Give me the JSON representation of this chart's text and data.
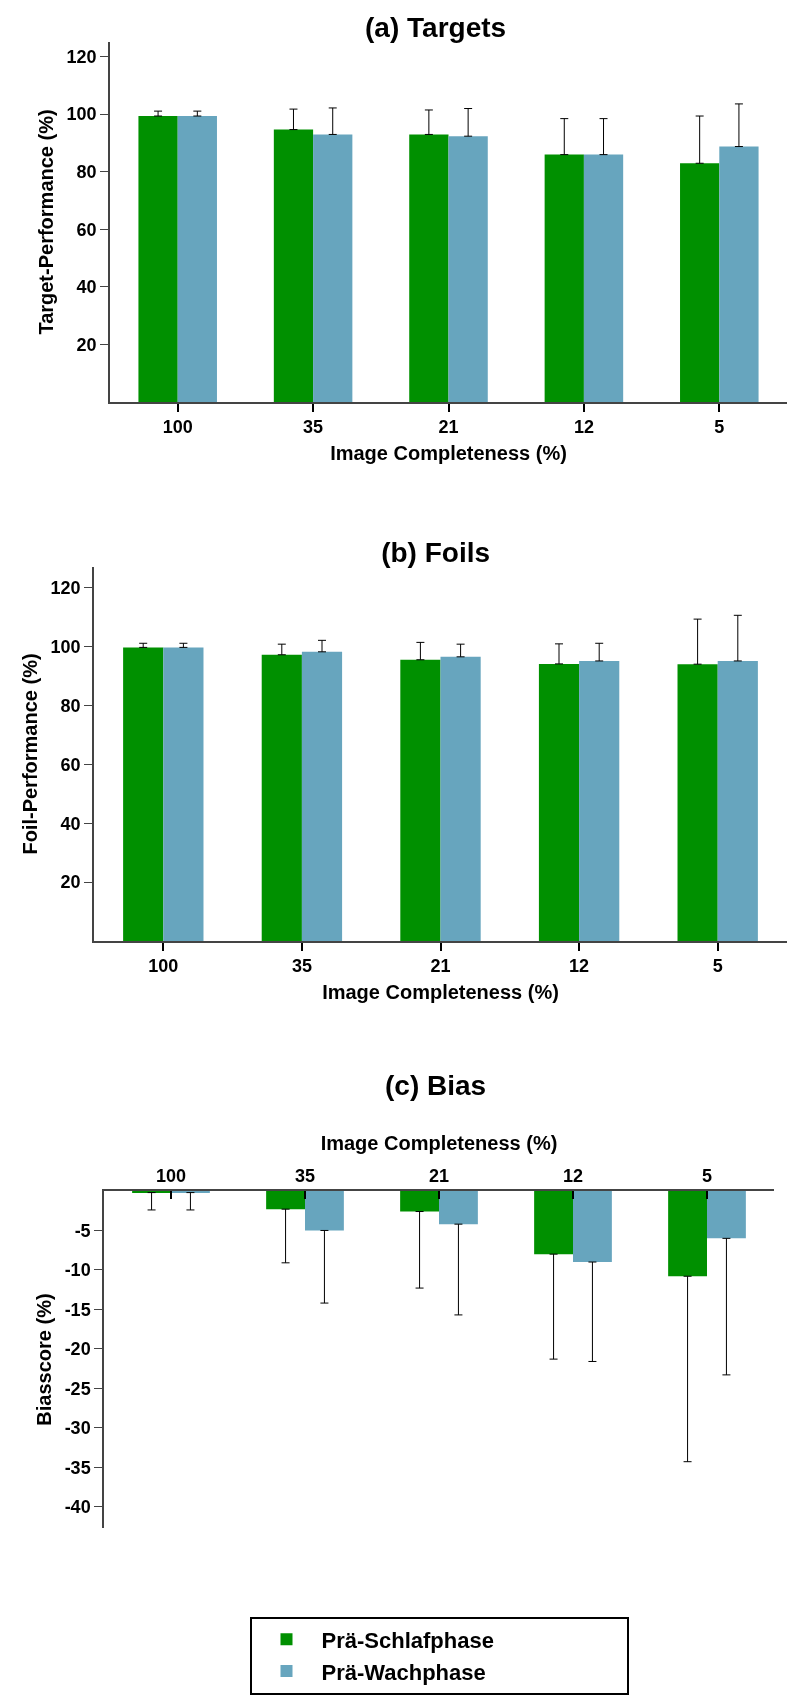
{
  "chart_data": [
    {
      "type": "bar",
      "title": "(a) Targets",
      "xlabel": "Image Completeness (%)",
      "ylabel": "Target-Performance (%)",
      "categories": [
        "100",
        "35",
        "21",
        "12",
        "5"
      ],
      "ylim": [
        0,
        125
      ],
      "yticks": [
        20,
        40,
        60,
        80,
        100,
        120
      ],
      "series": [
        {
          "color": "#009000",
          "values": [
            99.3,
            94.6,
            92.9,
            85.9,
            82.9
          ],
          "errors": [
            [
              99.3,
              101.0
            ],
            [
              94.6,
              101.7
            ],
            [
              92.9,
              101.4
            ],
            [
              85.9,
              98.4
            ],
            [
              82.9,
              99.3
            ]
          ]
        },
        {
          "color": "#67a5be",
          "values": [
            99.3,
            92.9,
            92.3,
            85.9,
            88.7
          ],
          "errors": [
            [
              99.3,
              101.0
            ],
            [
              92.9,
              102.1
            ],
            [
              92.3,
              101.9
            ],
            [
              85.9,
              98.4
            ],
            [
              88.7,
              103.5
            ]
          ]
        }
      ]
    },
    {
      "type": "bar",
      "title": "(b) Foils",
      "xlabel": "Image Completeness (%)",
      "ylabel": "Foil-Performance (%)",
      "categories": [
        "100",
        "35",
        "21",
        "12",
        "5"
      ],
      "ylim": [
        0,
        127
      ],
      "yticks": [
        20,
        40,
        60,
        80,
        100,
        120
      ],
      "series": [
        {
          "color": "#009000",
          "values": [
            99.7,
            97.2,
            95.5,
            94.1,
            94.0
          ],
          "errors": [
            [
              99.7,
              101.1
            ],
            [
              97.2,
              100.8
            ],
            [
              95.5,
              101.4
            ],
            [
              94.1,
              100.9
            ],
            [
              94.0,
              109.3
            ]
          ]
        },
        {
          "color": "#67a5be",
          "values": [
            99.7,
            98.2,
            96.5,
            95.1,
            95.1
          ],
          "errors": [
            [
              99.7,
              101.1
            ],
            [
              98.2,
              102.1
            ],
            [
              96.5,
              100.8
            ],
            [
              95.1,
              101.1
            ],
            [
              95.1,
              110.6
            ]
          ]
        }
      ]
    },
    {
      "type": "bar",
      "title": "(c) Bias",
      "x2label": "Image Completeness (%)",
      "ylabel": "Biasscore (%)",
      "categories": [
        "100",
        "35",
        "21",
        "12",
        "5"
      ],
      "ylim": [
        -42.7,
        0
      ],
      "yticks": [
        -5,
        -10,
        -15,
        -20,
        -25,
        -30,
        -35,
        -40
      ],
      "legend": "bottom",
      "series": [
        {
          "name": "Prä-Schlafphase",
          "color": "#009000",
          "values": [
            -0.2,
            -2.3,
            -2.6,
            -8.0,
            -10.8
          ],
          "errors": [
            [
              -2.4,
              -0.2
            ],
            [
              -9.1,
              -2.3
            ],
            [
              -12.3,
              -2.6
            ],
            [
              -21.3,
              -8.0
            ],
            [
              -34.3,
              -10.8
            ]
          ]
        },
        {
          "name": "Prä-Wachphase",
          "color": "#67a5be",
          "values": [
            -0.2,
            -5.0,
            -4.2,
            -9.0,
            -6.0
          ],
          "errors": [
            [
              -2.4,
              -0.2
            ],
            [
              -14.2,
              -5.0
            ],
            [
              -15.7,
              -4.2
            ],
            [
              -21.6,
              -9.0
            ],
            [
              -23.3,
              -6.0
            ]
          ]
        }
      ]
    }
  ]
}
